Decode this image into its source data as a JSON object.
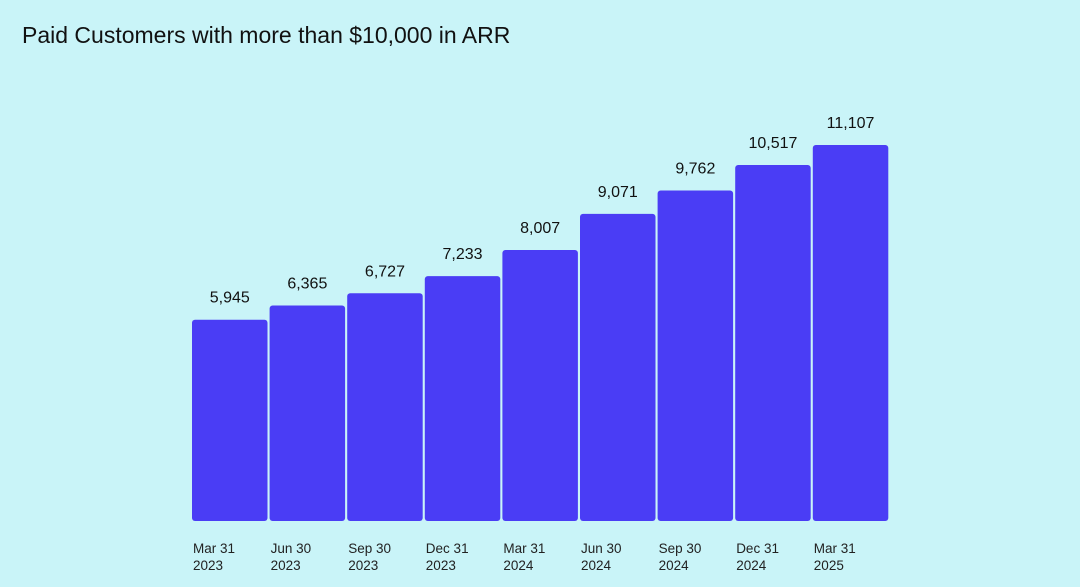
{
  "chart_data": {
    "type": "bar",
    "title": "Paid Customers with more than $10,000 in ARR",
    "categories": [
      [
        "Mar 31",
        "2023"
      ],
      [
        "Jun 30",
        "2023"
      ],
      [
        "Sep 30",
        "2023"
      ],
      [
        "Dec 31",
        "2023"
      ],
      [
        "Mar 31",
        "2024"
      ],
      [
        "Jun 30",
        "2024"
      ],
      [
        "Sep 30",
        "2024"
      ],
      [
        "Dec 31",
        "2024"
      ],
      [
        "Mar 31",
        "2025"
      ]
    ],
    "values": [
      5945,
      6365,
      6727,
      7233,
      8007,
      9071,
      9762,
      10517,
      11107
    ],
    "value_labels": [
      "5,945",
      "6,365",
      "6,727",
      "7,233",
      "8,007",
      "9,071",
      "9,762",
      "10,517",
      "11,107"
    ],
    "ylim": [
      0,
      11107
    ],
    "grid": false,
    "colors": {
      "bar": "#4a3df5",
      "background": "#c9f4f8"
    }
  }
}
